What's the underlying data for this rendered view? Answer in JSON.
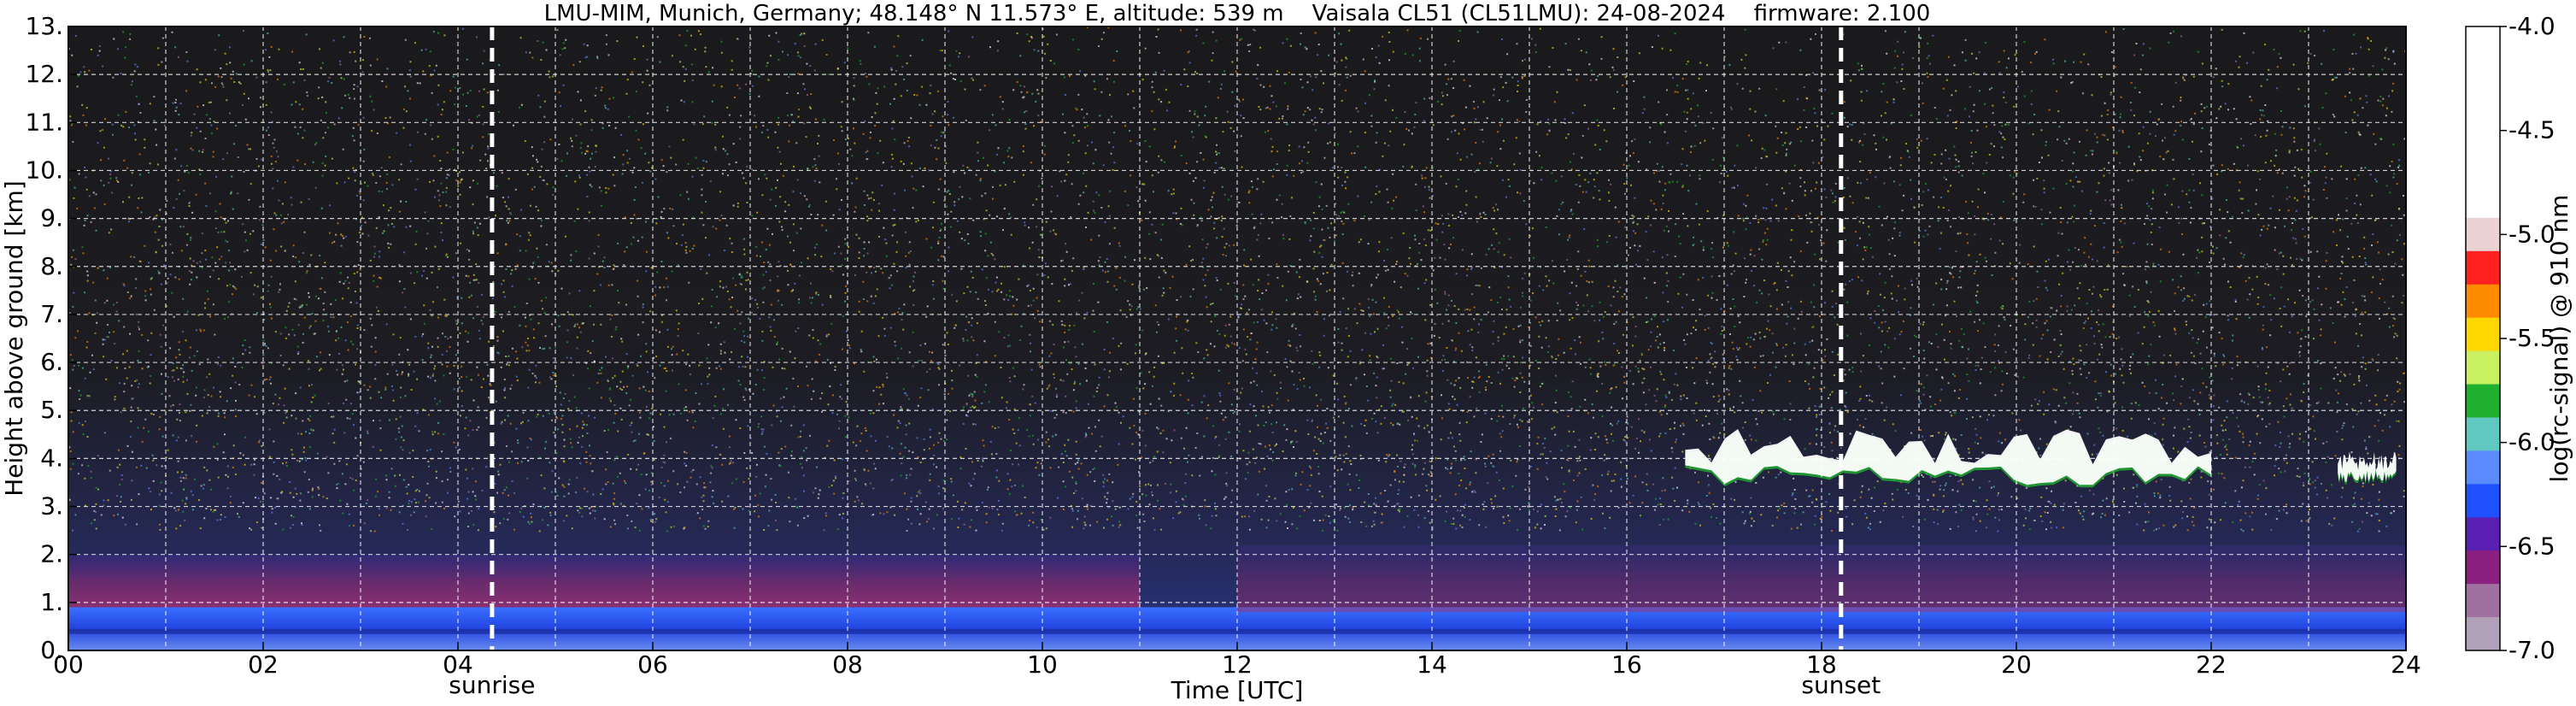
{
  "chart_data": {
    "type": "heatmap",
    "title": "LMU-MIM, Munich, Germany; 48.148° N 11.573° E, altitude: 539 m    Vaisala CL51 (CL51LMU): 24-08-2024    firmware: 2.100",
    "xlabel": "Time [UTC]",
    "ylabel": "Height above ground [km]",
    "xlim": [
      0,
      24
    ],
    "ylim": [
      0,
      13
    ],
    "x_ticks": [
      "00",
      "02",
      "04",
      "06",
      "08",
      "10",
      "12",
      "14",
      "16",
      "18",
      "20",
      "22",
      "24"
    ],
    "y_ticks": [
      "0.",
      "1.",
      "2.",
      "3.",
      "4.",
      "5.",
      "6.",
      "7.",
      "8.",
      "9.",
      "10.",
      "11.",
      "12.",
      "13."
    ],
    "grid": true,
    "colorbar": {
      "label": "log(rc-signal) @ 910 nm",
      "range": [
        -7.0,
        -4.0
      ],
      "ticks": [
        "-4.0",
        "-4.5",
        "-5.0",
        "-5.5",
        "-6.0",
        "-6.5",
        "-7.0"
      ],
      "colors": [
        "#ffffff",
        "#ecd2d2",
        "#ff2020",
        "#ff8c00",
        "#ffd700",
        "#c8f060",
        "#20b030",
        "#60c8c0",
        "#5a8cff",
        "#1e50ff",
        "#5a20b4",
        "#8c2080",
        "#a070a0",
        "#b0a0b8"
      ]
    },
    "markers": [
      {
        "label": "sunrise",
        "x": 4.35
      },
      {
        "label": "sunset",
        "x": 18.2
      }
    ],
    "layers": [
      {
        "feature": "surface aerosol layer",
        "x": [
          0,
          24
        ],
        "height_km": [
          0,
          0.9
        ],
        "level": -6.4
      },
      {
        "feature": "residual layer",
        "x": [
          0,
          11
        ],
        "height_km": [
          0.9,
          2.0
        ],
        "level": -6.7
      },
      {
        "feature": "boundary layer top",
        "x": [
          12,
          24
        ],
        "height_km": [
          0.8,
          2.2
        ],
        "level": -6.7
      },
      {
        "feature": "cloud layer",
        "x": [
          16.6,
          22
        ],
        "height_km": [
          3.3,
          5.0
        ],
        "level": -4.0
      },
      {
        "feature": "cloud patch",
        "x": [
          23.3,
          23.9
        ],
        "height_km": [
          3.4,
          4.4
        ],
        "level": -4.0
      }
    ],
    "background_noise": {
      "height_km": [
        2.5,
        13
      ],
      "level": -6.9
    }
  }
}
